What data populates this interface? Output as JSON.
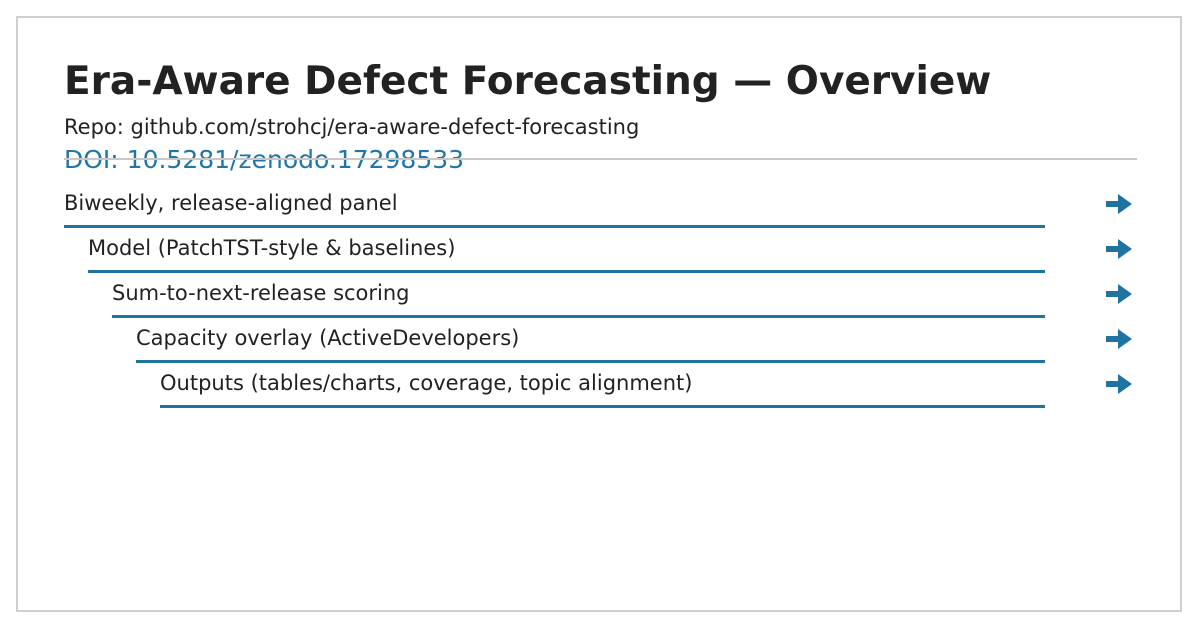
{
  "slide": {
    "title": "Era-Aware Defect Forecasting — Overview",
    "repo_text": "Repo: github.com/strohcj/era-aware-defect-forecasting",
    "doi_text": "DOI: 10.5281/zenodo.17298533"
  },
  "steps": [
    {
      "label": "Biweekly, release-aligned panel"
    },
    {
      "label": "Model (PatchTST-style & baselines)"
    },
    {
      "label": "Sum-to-next-release scoring"
    },
    {
      "label": "Capacity overlay (ActiveDevelopers)"
    },
    {
      "label": "Outputs (tables/charts, coverage, topic alignment)"
    }
  ],
  "icons": {
    "step_arrow": "arrow-right-icon"
  },
  "colors": {
    "accent": "#1f73a0",
    "link": "#2176a8",
    "text": "#222222",
    "border": "#cfcfcf"
  }
}
